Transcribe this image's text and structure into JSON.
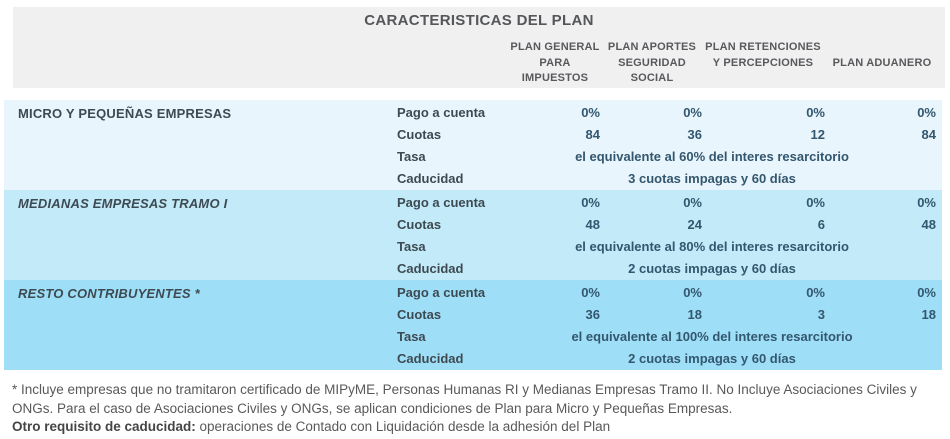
{
  "title": "CARACTERISTICAS DEL PLAN",
  "columns": [
    "PLAN GENERAL PARA IMPUESTOS",
    "PLAN APORTES SEGURIDAD SOCIAL",
    "PLAN RETENCIONES Y PERCEPCIONES",
    "PLAN ADUANERO"
  ],
  "row_labels": {
    "pago": "Pago a cuenta",
    "cuotas": "Cuotas",
    "tasa": "Tasa",
    "caducidad": "Caducidad"
  },
  "sections": [
    {
      "name": "MICRO Y PEQUEÑAS EMPRESAS",
      "bg": "#e9f5fc",
      "pago": [
        "0%",
        "0%",
        "0%",
        "0%"
      ],
      "cuotas": [
        "84",
        "36",
        "12",
        "84"
      ],
      "tasa": "el equivalente al 60% del interes resarcitorio",
      "caducidad": "3 cuotas impagas y 60 días"
    },
    {
      "name": "MEDIANAS EMPRESAS TRAMO I",
      "bg": "#c2eaf8",
      "pago": [
        "0%",
        "0%",
        "0%",
        "0%"
      ],
      "cuotas": [
        "48",
        "24",
        "6",
        "48"
      ],
      "tasa": "el equivalente al 80% del interes resarcitorio",
      "caducidad": "2 cuotas impagas y 60 días"
    },
    {
      "name": "RESTO CONTRIBUYENTES *",
      "bg": "#9edff7",
      "pago": [
        "0%",
        "0%",
        "0%",
        "0%"
      ],
      "cuotas": [
        "36",
        "18",
        "3",
        "18"
      ],
      "tasa": "el equivalente al 100% del interes resarcitorio",
      "caducidad": "2 cuotas impagas y 60 días"
    }
  ],
  "footnote": {
    "text1": "* Incluye empresas que no tramitaron certificado de MIPyME, Personas Humanas RI y Medianas Empresas Tramo II. No Incluye Asociaciones Civiles y ONGs. Para el caso de Asociaciones Civiles y ONGs, se aplican condiciones de Plan para Micro y Pequeñas Empresas.",
    "bold_label": "Otro requisito de caducidad:",
    "bold_rest": " operaciones de Contado con Liquidación desde la adhesión del Plan"
  },
  "colors": {
    "header_bg": "#f0f0f0",
    "title_text": "#55565a",
    "label_text": "#3e4a52",
    "value_text": "#33576e",
    "footnote_text": "#58595b"
  }
}
